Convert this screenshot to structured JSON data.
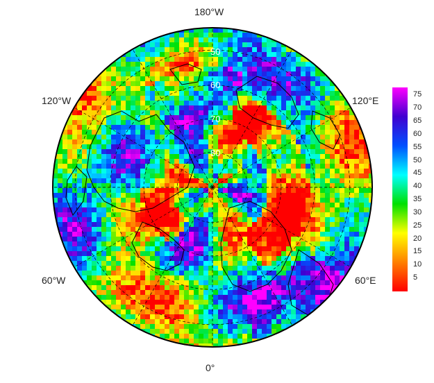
{
  "map": {
    "projection": "north polar stereographic",
    "longitude_labels": {
      "top": "180°W",
      "upper_left": "120°W",
      "upper_right": "120°E",
      "lower_left": "60°W",
      "lower_right": "60°E",
      "bottom": "0°"
    },
    "latitude_labels": [
      "50",
      "60",
      "70",
      "80"
    ]
  },
  "colorbar": {
    "ticks": [
      "75",
      "70",
      "65",
      "60",
      "55",
      "50",
      "45",
      "40",
      "35",
      "30",
      "25",
      "20",
      "15",
      "10",
      "5"
    ],
    "min": 0,
    "max": 78,
    "colors": [
      "#ff0000",
      "#ff8000",
      "#ffff00",
      "#00e000",
      "#00ffff",
      "#0050ff",
      "#4000d0",
      "#ff00ff"
    ]
  }
}
